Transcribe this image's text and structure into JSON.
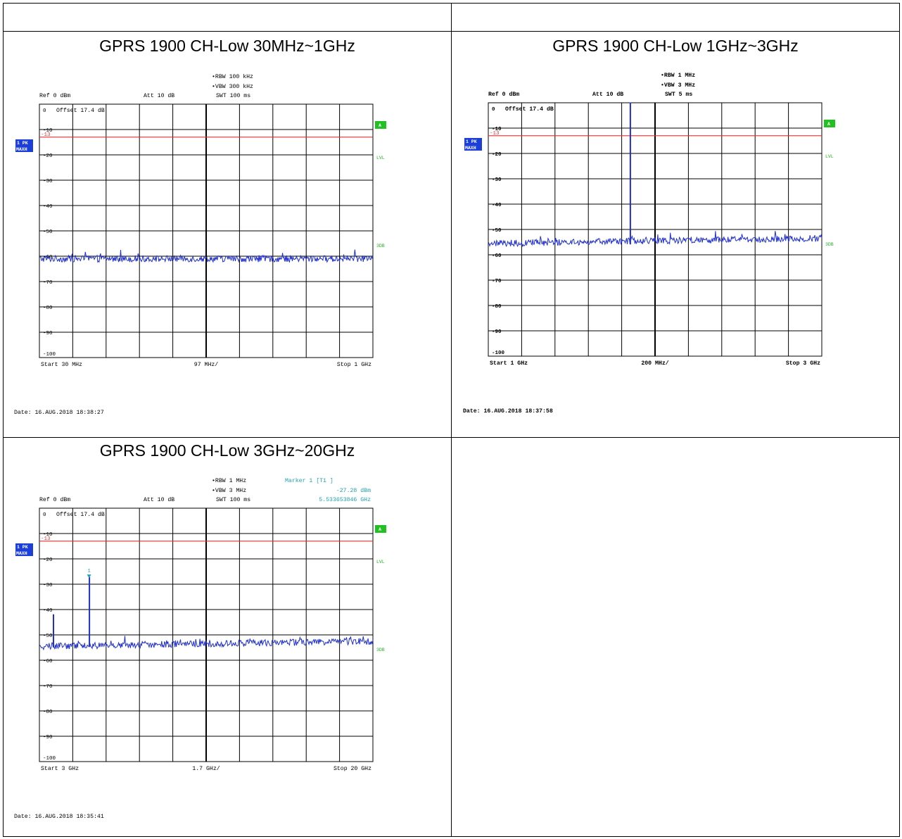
{
  "panels": [
    {
      "title": "GPRS 1900 CH-Low 30MHz~1GHz",
      "rbw": "RBW 100 kHz",
      "vbw": "VBW 300 kHz",
      "swt": "SWT 100 ms",
      "ref": "Ref  0 dBm",
      "att": "Att  10 dB",
      "offset": "Offset  17.4 dB",
      "trace_badge_1": "1 PK",
      "trace_badge_2": "MAXH",
      "start": "Start  30 MHz",
      "span_per_div": "97 MHz/",
      "stop": "Stop  1 GHz",
      "date": "Date: 16.AUG.2018  18:38:27",
      "right_labels": [
        "A",
        "LVL",
        "3DB"
      ],
      "limit_label": "-13",
      "marker": null
    },
    {
      "title": "GPRS 1900 CH-Low 1GHz~3GHz",
      "rbw": "RBW 1 MHz",
      "vbw": "VBW 3 MHz",
      "swt": "SWT 5 ms",
      "ref": "Ref  0 dBm",
      "att": "Att  10 dB",
      "offset": "Offset  17.4 dB",
      "trace_badge_1": "1 PK",
      "trace_badge_2": "MAXH",
      "start": "Start  1 GHz",
      "span_per_div": "200 MHz/",
      "stop": "Stop  3 GHz",
      "date": "Date: 16.AUG.2018  18:37:58",
      "right_labels": [
        "A",
        "LVL",
        "3DB"
      ],
      "limit_label": "-13",
      "marker": null
    },
    {
      "title": "GPRS 1900 CH-Low 3GHz~20GHz",
      "rbw": "RBW 1 MHz",
      "vbw": "VBW 3 MHz",
      "swt": "SWT 100 ms",
      "ref": "Ref  0 dBm",
      "att": "Att  10 dB",
      "offset": "Offset  17.4 dB",
      "trace_badge_1": "1 PK",
      "trace_badge_2": "MAXH",
      "start": "Start  3 GHz",
      "span_per_div": "1.7 GHz/",
      "stop": "Stop  20 GHz",
      "date": "Date: 16.AUG.2018  18:35:41",
      "right_labels": [
        "A",
        "LVL",
        "3DB"
      ],
      "limit_label": "-13",
      "marker": {
        "line1": "Marker 1 [T1 ]",
        "line2": "-27.28 dBm",
        "line3": "5.533653846 GHz",
        "label": "1"
      }
    }
  ],
  "chart_data": [
    {
      "type": "line",
      "xlim": [
        30,
        1000
      ],
      "x_unit": "MHz",
      "ylim": [
        -100,
        0
      ],
      "y_unit": "dBm",
      "yticks": [
        0,
        -10,
        -20,
        -30,
        -40,
        -50,
        -60,
        -70,
        -80,
        -90,
        -100
      ],
      "ytick_labels": [
        "0",
        "-10",
        "-20",
        "-30",
        "-40",
        "-50",
        "-60",
        "-70",
        "-80",
        "-90",
        "-100"
      ],
      "limit_line": -13,
      "noise_floor": -61,
      "peaks": [],
      "grid": true
    },
    {
      "type": "line",
      "xlim": [
        1000,
        3000
      ],
      "x_unit": "MHz",
      "ylim": [
        -100,
        0
      ],
      "y_unit": "dBm",
      "yticks": [
        0,
        -10,
        -20,
        -30,
        -40,
        -50,
        -60,
        -70,
        -80,
        -90,
        -100
      ],
      "ytick_labels": [
        "0",
        "-10",
        "-20",
        "-30",
        "-40",
        "-50",
        "-60",
        "-70",
        "-80",
        "-90",
        "-100"
      ],
      "limit_line": -13,
      "noise_floor": -55.5,
      "noise_tilt": 2,
      "peaks": [
        {
          "x": 1850,
          "y": 0
        }
      ],
      "grid": true
    },
    {
      "type": "line",
      "xlim": [
        3000,
        20000
      ],
      "x_unit": "MHz",
      "ylim": [
        -100,
        0
      ],
      "y_unit": "dBm",
      "yticks": [
        0,
        -10,
        -20,
        -30,
        -40,
        -50,
        -60,
        -70,
        -80,
        -90,
        -100
      ],
      "ytick_labels": [
        "0",
        "-10",
        "-20",
        "-30",
        "-40",
        "-50",
        "-60",
        "-70",
        "-80",
        "-90",
        "-100"
      ],
      "limit_line": -13,
      "noise_floor": -54.5,
      "noise_tilt": 2,
      "peaks": [
        {
          "x": 3700,
          "y": -42
        },
        {
          "x": 5533.653846,
          "y": -27.28
        }
      ],
      "marker": {
        "x": 5533.653846,
        "y": -27.28
      },
      "grid": true
    }
  ],
  "colors": {
    "trace": "#1f2fd0",
    "limit": "#e03030",
    "grid": "#000000",
    "badge_blue": "#1b3fd8",
    "badge_green": "#22c022",
    "label_green": "#22b022",
    "marker_cyan": "#22a0b0"
  }
}
